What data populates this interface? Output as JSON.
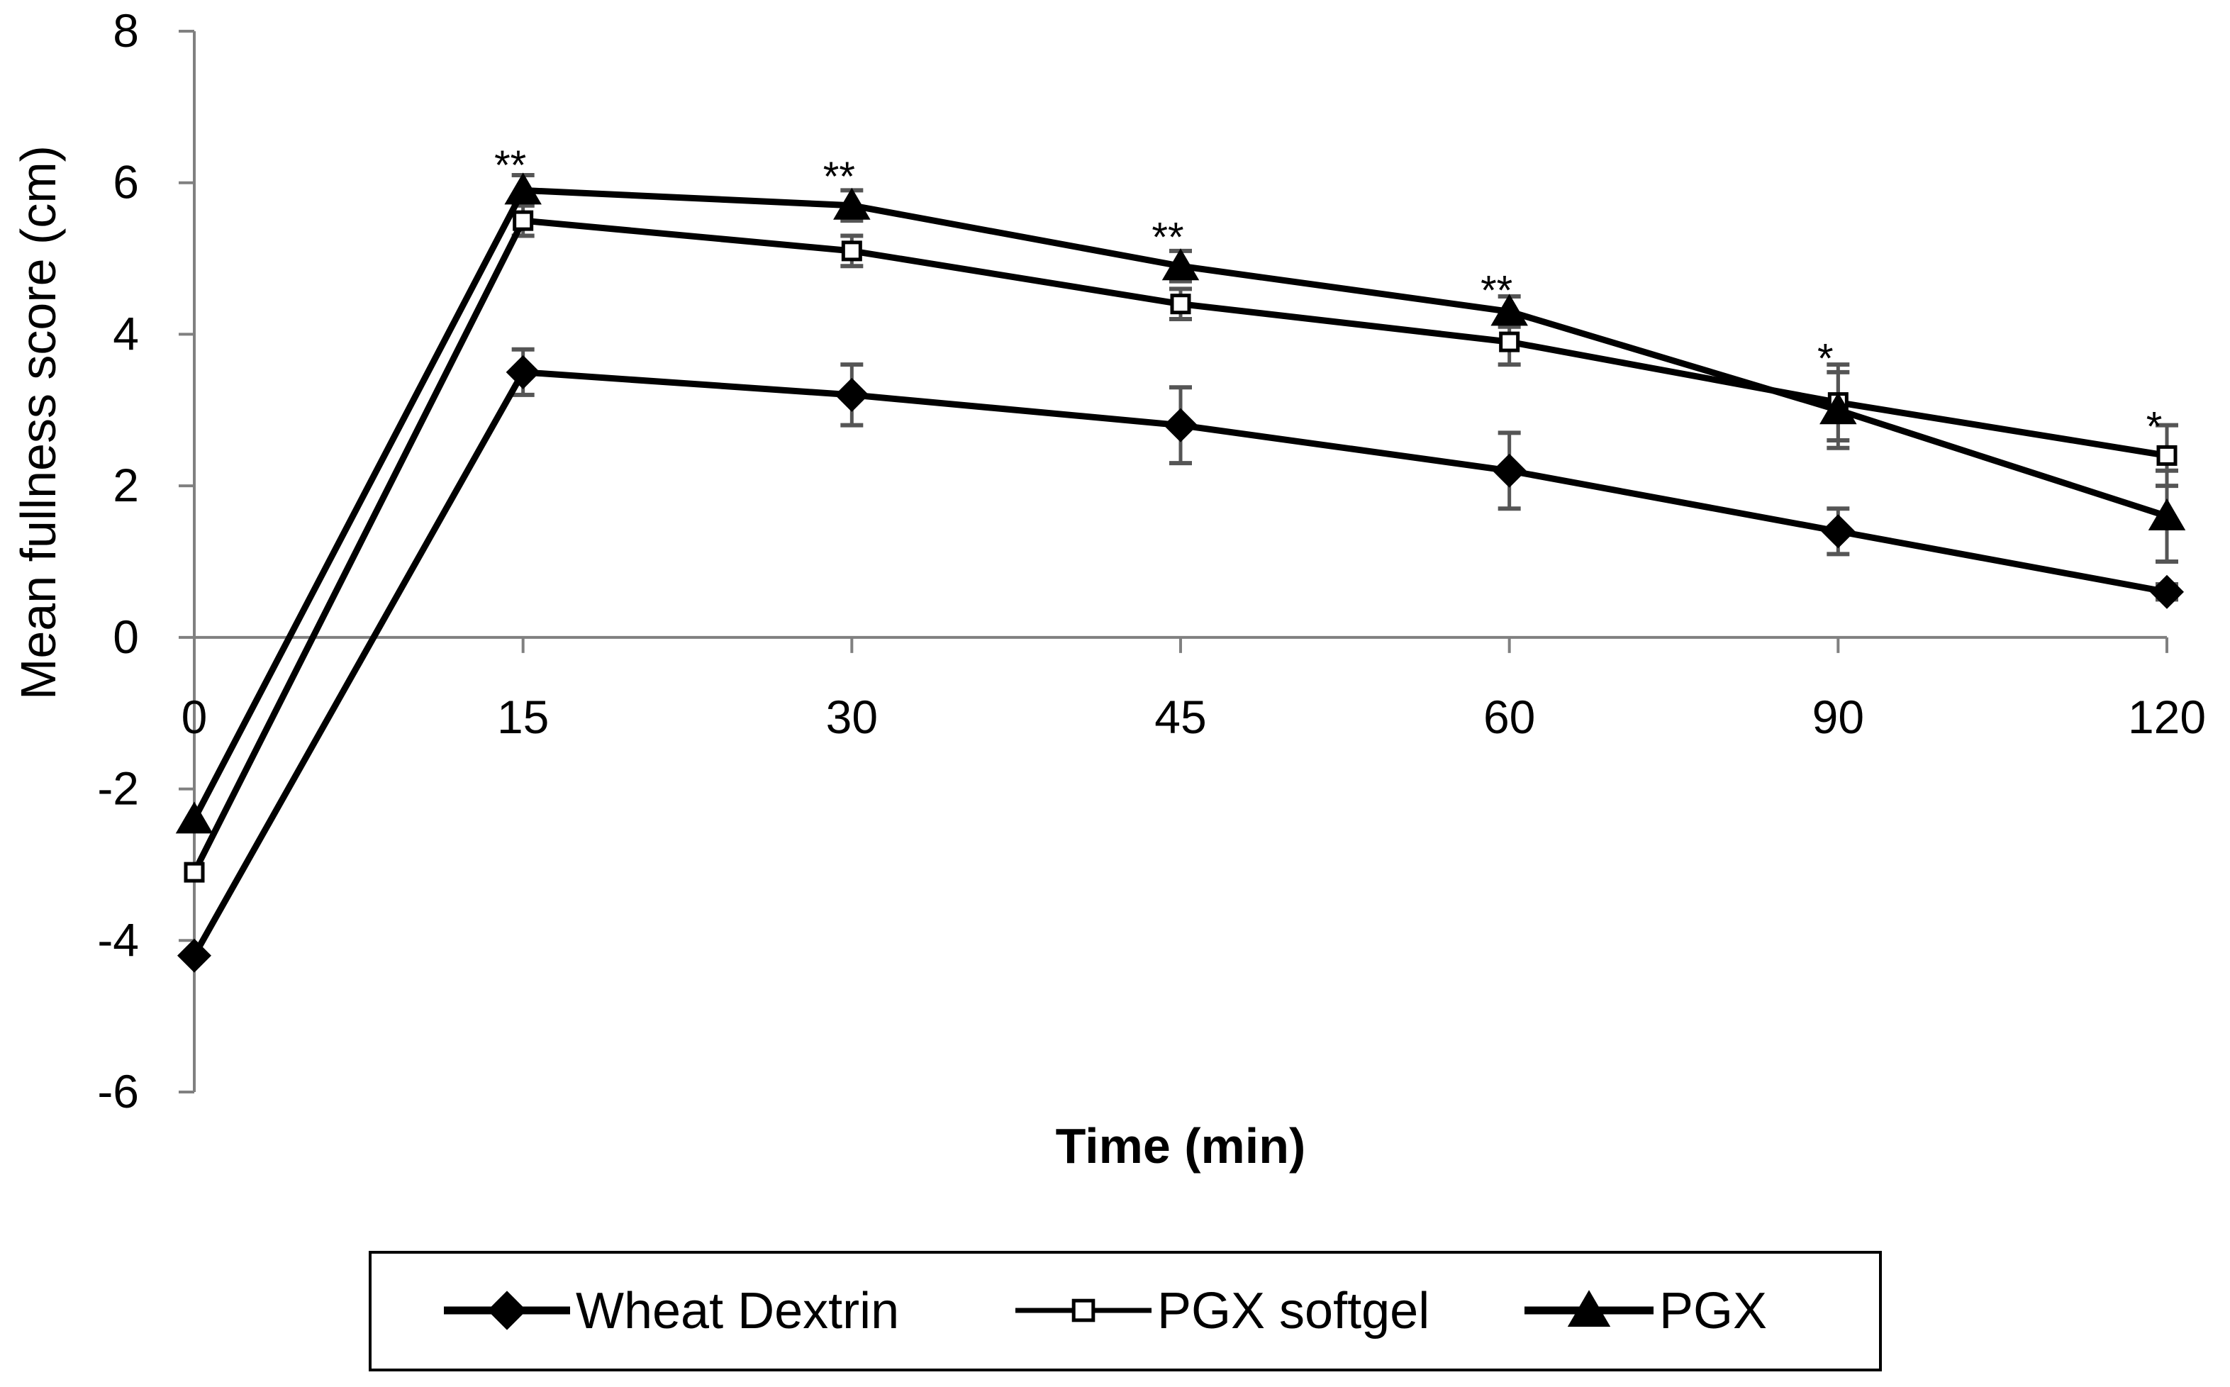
{
  "chart_data": {
    "type": "line",
    "title": "",
    "xlabel": "Time (min)",
    "ylabel": "Mean fullness score (cm)",
    "categories": [
      "0",
      "15",
      "30",
      "45",
      "60",
      "90",
      "120"
    ],
    "ylim": [
      -6,
      8
    ],
    "yticks": [
      8,
      6,
      4,
      2,
      0,
      -2,
      -4,
      -6
    ],
    "grid": false,
    "legend_position": "bottom",
    "series": [
      {
        "name": "Wheat Dextrin",
        "marker": "diamond",
        "values": [
          -4.2,
          3.5,
          3.2,
          2.8,
          2.2,
          1.4,
          0.6
        ],
        "errors": [
          0.0,
          0.3,
          0.4,
          0.5,
          0.5,
          0.3,
          0.1
        ]
      },
      {
        "name": "PGX softgel",
        "marker": "square-open",
        "values": [
          -3.1,
          5.5,
          5.1,
          4.4,
          3.9,
          3.1,
          2.4
        ],
        "errors": [
          0.0,
          0.2,
          0.2,
          0.2,
          0.3,
          0.5,
          0.4
        ]
      },
      {
        "name": "PGX",
        "marker": "triangle",
        "values": [
          -2.4,
          5.9,
          5.7,
          4.9,
          4.3,
          3.0,
          1.6
        ],
        "errors": [
          0.0,
          0.2,
          0.2,
          0.2,
          0.2,
          0.5,
          0.6
        ]
      }
    ],
    "annotations": [
      {
        "category": "15",
        "text": "**",
        "y": 6.25
      },
      {
        "category": "30",
        "text": "**",
        "y": 6.1
      },
      {
        "category": "45",
        "text": "**",
        "y": 5.3
      },
      {
        "category": "60",
        "text": "**",
        "y": 4.6
      },
      {
        "category": "90",
        "text": "*",
        "y": 3.7
      },
      {
        "category": "120",
        "text": "*",
        "y": 2.8
      }
    ]
  },
  "colors": {
    "line": "#000000",
    "error_bar": "#555555",
    "axis": "#808080",
    "background": "#ffffff"
  }
}
